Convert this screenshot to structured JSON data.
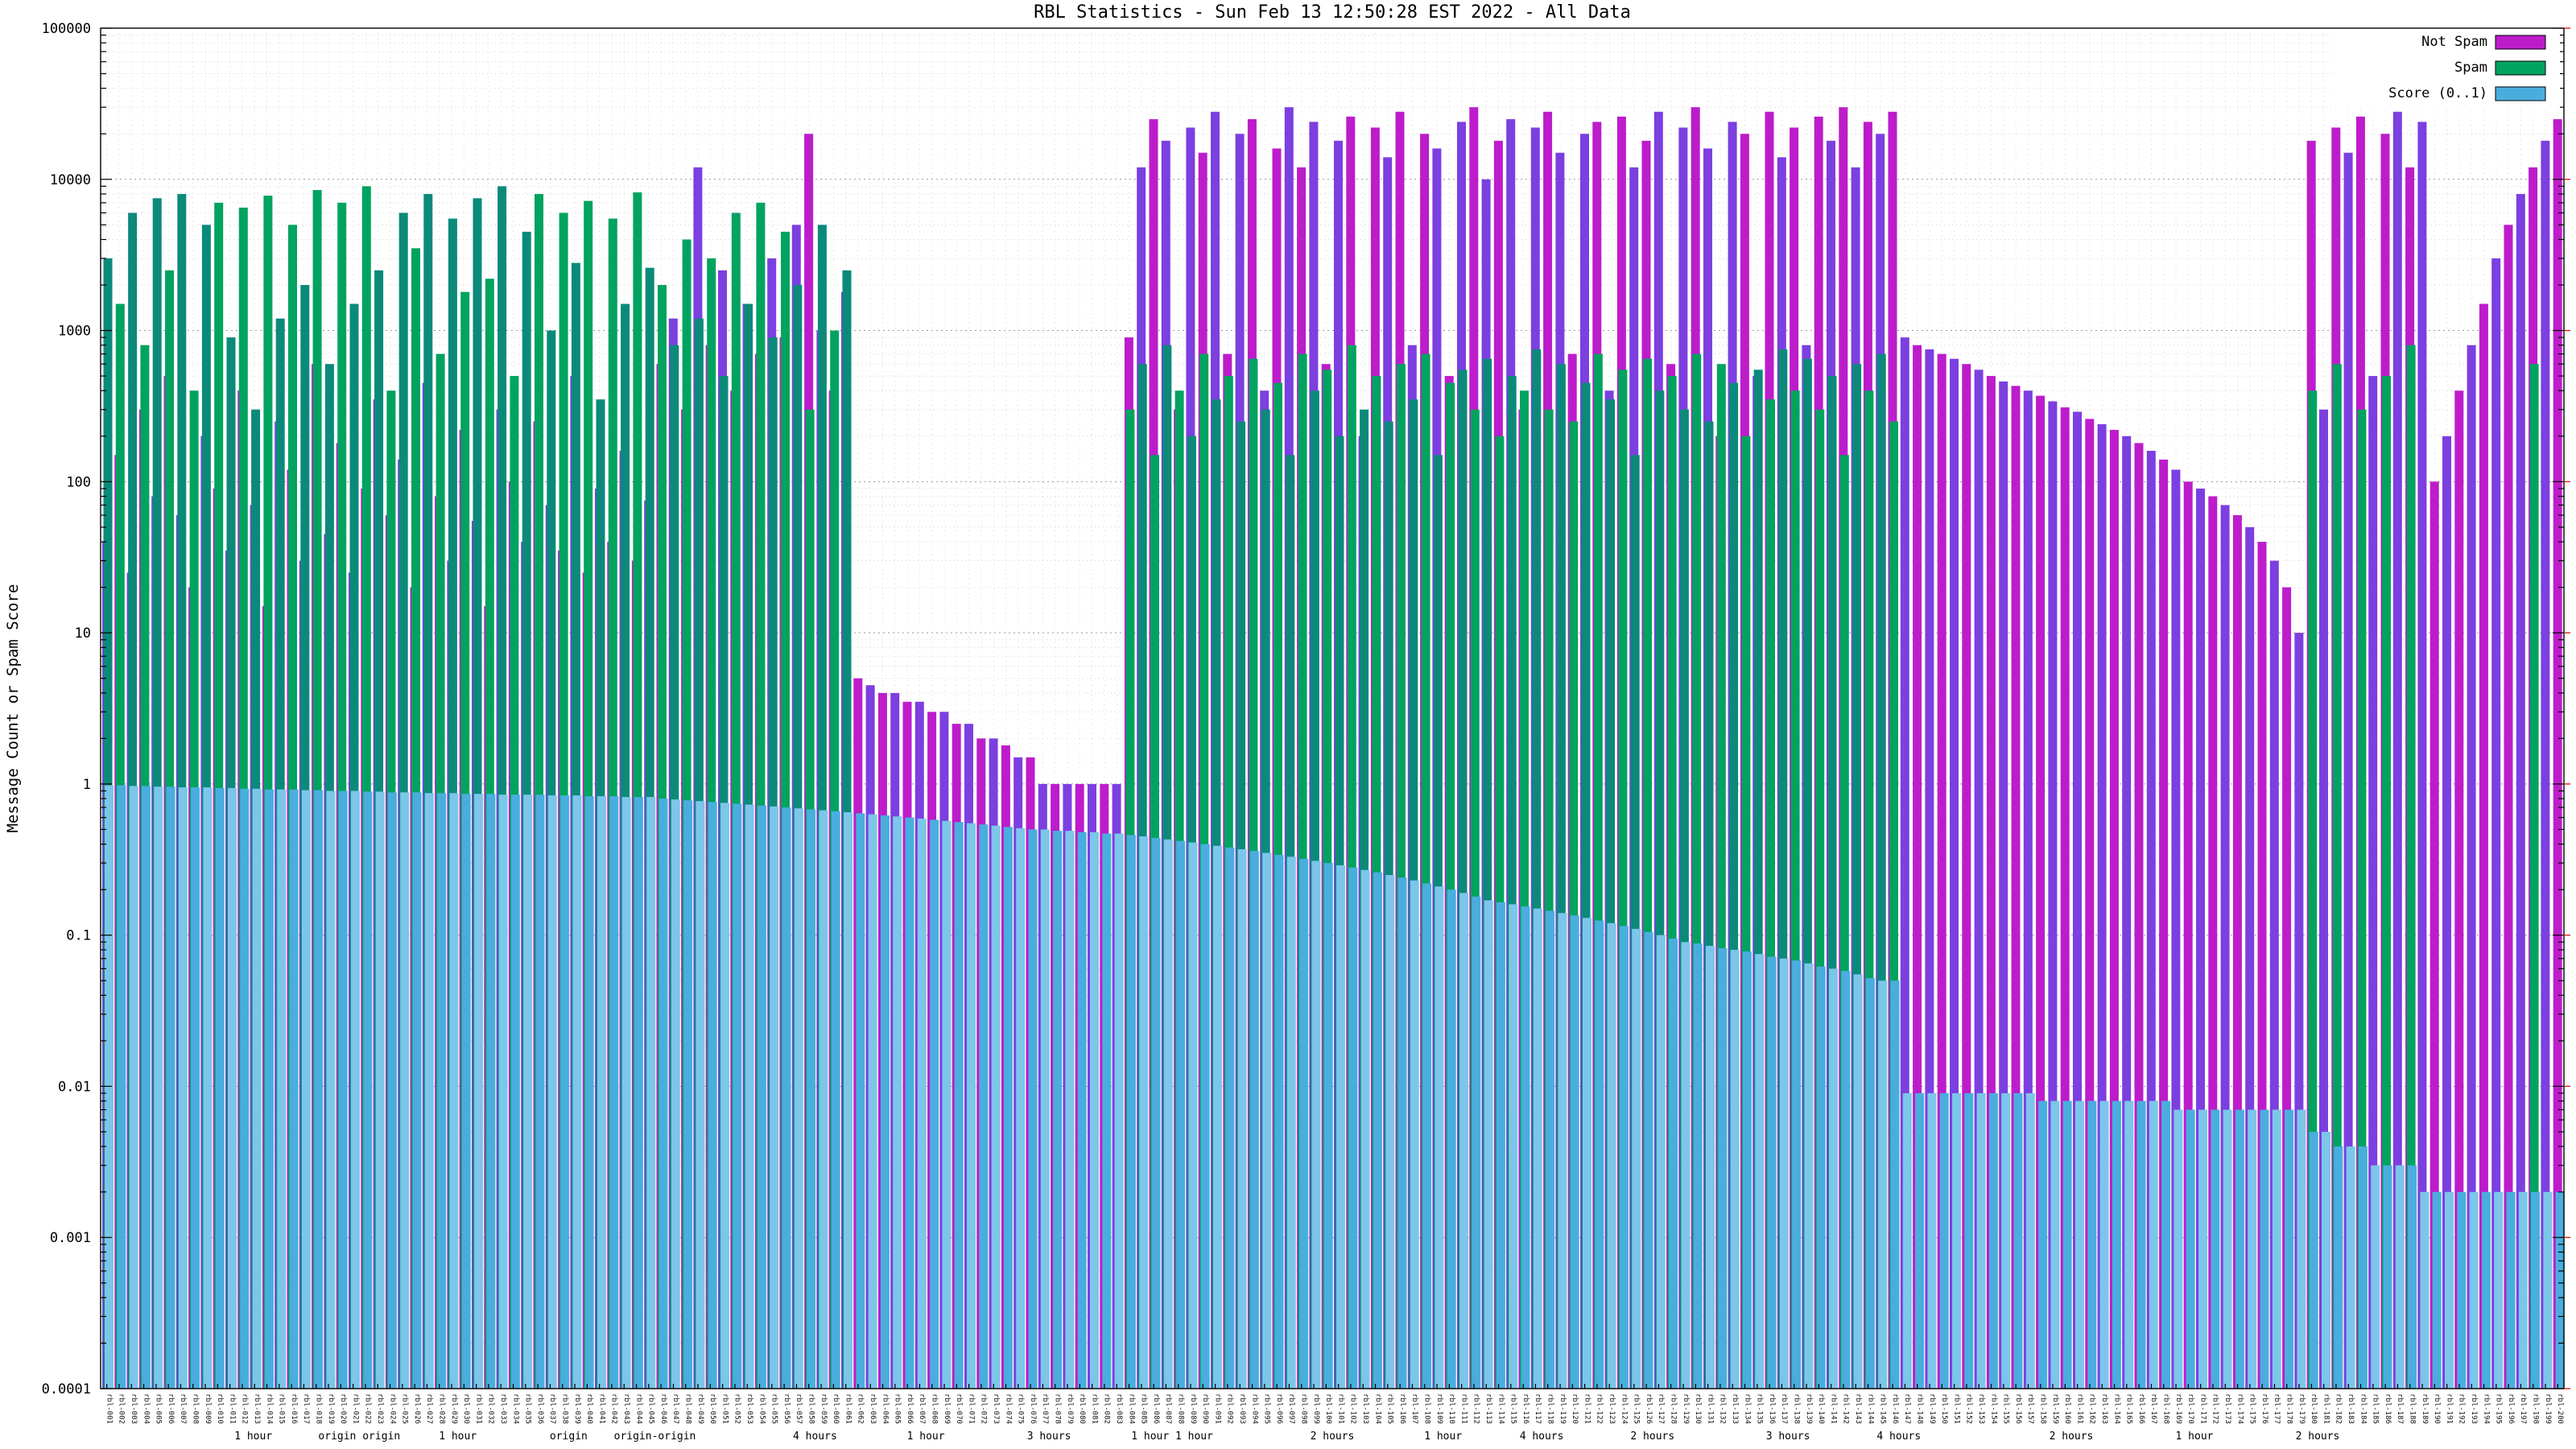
{
  "page": {
    "title": "RBL Statistics - Sun Feb 13 12:50:28 EST 2022 - All Data"
  },
  "chart_data": {
    "type": "bar",
    "title": "RBL Statistics - Sun Feb 13 12:50:28 EST 2022 - All Data",
    "xlabel": "",
    "ylabel": "Message Count or Spam Score",
    "y_scale": "log10",
    "ylim": [
      0.0001,
      100000
    ],
    "y_ticks": [
      "100000",
      "10000",
      "1000",
      "100",
      "10",
      "1",
      "0.1",
      "0.01",
      "0.001",
      "0.0001"
    ],
    "grid": true,
    "legend_position": "top-right",
    "colors": {
      "not_spam": "#bd1ccb",
      "not_spam_alt": "#7c3fe0",
      "spam": "#00a35f",
      "spam_alt": "#0b8a7a",
      "score": "#49aede",
      "score_alt": "#7cc6ea"
    },
    "categories_generated": {
      "prefix": "rbl-",
      "count": 200,
      "note": "x tick labels are illegible in the source image; dense rotated host/rule labels"
    },
    "x_annotations": [
      {
        "label": "1 hour",
        "x": 0.062
      },
      {
        "label": "origin origin",
        "x": 0.105
      },
      {
        "label": "1 hour",
        "x": 0.145
      },
      {
        "label": "origin",
        "x": 0.19
      },
      {
        "label": "origin-origin",
        "x": 0.225
      },
      {
        "label": "4 hours",
        "x": 0.29
      },
      {
        "label": "1 hour",
        "x": 0.335
      },
      {
        "label": "3 hours",
        "x": 0.385
      },
      {
        "label": "1 hour 1 hour",
        "x": 0.435
      },
      {
        "label": "2 hours",
        "x": 0.5
      },
      {
        "label": "1 hour",
        "x": 0.545
      },
      {
        "label": "4 hours",
        "x": 0.585
      },
      {
        "label": "2 hours",
        "x": 0.63
      },
      {
        "label": "3 hours",
        "x": 0.685
      },
      {
        "label": "4 hours",
        "x": 0.73
      },
      {
        "label": "2 hours",
        "x": 0.8
      },
      {
        "label": "1 hour",
        "x": 0.85
      },
      {
        "label": "2 hours",
        "x": 0.9
      }
    ],
    "series": [
      {
        "name": "Not Spam",
        "color_key": "not_spam",
        "alt_color_key": "not_spam_alt",
        "values": [
          40,
          150,
          25,
          300,
          80,
          500,
          60,
          20,
          200,
          90,
          35,
          400,
          70,
          15,
          250,
          120,
          30,
          600,
          45,
          180,
          25,
          90,
          350,
          60,
          140,
          20,
          450,
          80,
          30,
          220,
          55,
          15,
          300,
          100,
          40,
          250,
          70,
          35,
          500,
          25,
          90,
          40,
          160,
          30,
          75,
          600,
          1200,
          300,
          12000,
          800,
          2500,
          400,
          1500,
          700,
          3000,
          900,
          5000,
          20000,
          1000,
          400,
          1800,
          5,
          4.5,
          4,
          4,
          3.5,
          3.5,
          3,
          3,
          2.5,
          2.5,
          2,
          2,
          1.8,
          1.5,
          1.5,
          1,
          1,
          1,
          1,
          1,
          1,
          1,
          900,
          12000,
          25000,
          18000,
          300,
          22000,
          15000,
          28000,
          700,
          20000,
          25000,
          400,
          16000,
          30000,
          12000,
          24000,
          600,
          18000,
          26000,
          200,
          22000,
          14000,
          28000,
          800,
          20000,
          16000,
          500,
          24000,
          30000,
          10000,
          18000,
          25000,
          300,
          22000,
          28000,
          15000,
          700,
          20000,
          24000,
          400,
          26000,
          12000,
          18000,
          28000,
          600,
          22000,
          30000,
          16000,
          200,
          24000,
          20000,
          500,
          28000,
          14000,
          22000,
          800,
          26000,
          18000,
          30000,
          12000,
          24000,
          20000,
          28000,
          900,
          800,
          750,
          700,
          650,
          600,
          550,
          500,
          460,
          430,
          400,
          370,
          340,
          310,
          290,
          260,
          240,
          220,
          200,
          180,
          160,
          140,
          120,
          100,
          90,
          80,
          70,
          60,
          50,
          40,
          30,
          20,
          10,
          18000,
          300,
          22000,
          15000,
          26000,
          500,
          20000,
          28000,
          12000,
          24000,
          100,
          200,
          400,
          800,
          1500,
          3000,
          5000,
          8000,
          12000,
          18000,
          25000
        ]
      },
      {
        "name": "Spam",
        "color_key": "spam",
        "alt_color_key": "spam_alt",
        "values": [
          3000,
          1500,
          6000,
          800,
          7500,
          2500,
          8000,
          400,
          5000,
          7000,
          900,
          6500,
          300,
          7800,
          1200,
          5000,
          2000,
          8500,
          600,
          7000,
          1500,
          9000,
          2500,
          400,
          6000,
          3500,
          8000,
          700,
          5500,
          1800,
          7500,
          2200,
          9000,
          500,
          4500,
          8000,
          1000,
          6000,
          2800,
          7200,
          350,
          5500,
          1500,
          8200,
          2600,
          2000,
          800,
          4000,
          1200,
          3000,
          500,
          6000,
          1500,
          7000,
          900,
          4500,
          2000,
          300,
          5000,
          1000,
          2500,
          0,
          0,
          0,
          0,
          0,
          0,
          0,
          0,
          0,
          0,
          0,
          0,
          0,
          0,
          0,
          0,
          0,
          0,
          0,
          0,
          0,
          0,
          300,
          600,
          150,
          800,
          400,
          200,
          700,
          350,
          500,
          250,
          650,
          300,
          450,
          150,
          700,
          400,
          550,
          200,
          800,
          300,
          500,
          250,
          600,
          350,
          700,
          150,
          450,
          550,
          300,
          650,
          200,
          500,
          400,
          750,
          300,
          600,
          250,
          450,
          700,
          350,
          550,
          150,
          650,
          400,
          500,
          300,
          700,
          250,
          600,
          450,
          200,
          550,
          350,
          750,
          400,
          650,
          300,
          500,
          150,
          600,
          400,
          700,
          250,
          0,
          0,
          0,
          0,
          0,
          0,
          0,
          0,
          0,
          0,
          0,
          0,
          0,
          0,
          0,
          0,
          0,
          0,
          0,
          0,
          0,
          0,
          0,
          0,
          0,
          0,
          0,
          0,
          0,
          0,
          0,
          0,
          0,
          400,
          0,
          600,
          0,
          300,
          0,
          500,
          0,
          800,
          0,
          0,
          0,
          0,
          0,
          0,
          0,
          0,
          0,
          600,
          0,
          0
        ]
      },
      {
        "name": "Score (0..1)",
        "color_key": "score",
        "alt_color_key": "score_alt",
        "values": [
          0.98,
          0.98,
          0.97,
          0.97,
          0.96,
          0.96,
          0.95,
          0.95,
          0.95,
          0.94,
          0.94,
          0.93,
          0.93,
          0.92,
          0.92,
          0.92,
          0.91,
          0.91,
          0.9,
          0.9,
          0.9,
          0.89,
          0.89,
          0.88,
          0.88,
          0.88,
          0.87,
          0.87,
          0.87,
          0.86,
          0.86,
          0.86,
          0.85,
          0.85,
          0.85,
          0.85,
          0.84,
          0.84,
          0.84,
          0.83,
          0.83,
          0.83,
          0.82,
          0.82,
          0.82,
          0.8,
          0.79,
          0.78,
          0.77,
          0.76,
          0.75,
          0.74,
          0.73,
          0.72,
          0.71,
          0.7,
          0.69,
          0.68,
          0.67,
          0.66,
          0.65,
          0.64,
          0.63,
          0.62,
          0.61,
          0.6,
          0.59,
          0.58,
          0.57,
          0.56,
          0.55,
          0.54,
          0.53,
          0.52,
          0.51,
          0.5,
          0.5,
          0.49,
          0.49,
          0.48,
          0.48,
          0.47,
          0.47,
          0.46,
          0.45,
          0.44,
          0.43,
          0.42,
          0.41,
          0.4,
          0.39,
          0.38,
          0.37,
          0.36,
          0.35,
          0.34,
          0.33,
          0.32,
          0.31,
          0.3,
          0.29,
          0.28,
          0.27,
          0.26,
          0.25,
          0.24,
          0.23,
          0.22,
          0.21,
          0.2,
          0.19,
          0.18,
          0.17,
          0.165,
          0.16,
          0.155,
          0.15,
          0.145,
          0.14,
          0.135,
          0.13,
          0.125,
          0.12,
          0.115,
          0.11,
          0.105,
          0.1,
          0.095,
          0.09,
          0.088,
          0.085,
          0.082,
          0.08,
          0.078,
          0.075,
          0.072,
          0.07,
          0.068,
          0.065,
          0.062,
          0.06,
          0.058,
          0.055,
          0.052,
          0.05,
          0.05,
          0.009,
          0.009,
          0.009,
          0.009,
          0.009,
          0.009,
          0.009,
          0.009,
          0.009,
          0.009,
          0.009,
          0.008,
          0.008,
          0.008,
          0.008,
          0.008,
          0.008,
          0.008,
          0.008,
          0.008,
          0.008,
          0.008,
          0.007,
          0.007,
          0.007,
          0.007,
          0.007,
          0.007,
          0.007,
          0.007,
          0.007,
          0.007,
          0.007,
          0.005,
          0.005,
          0.004,
          0.004,
          0.004,
          0.003,
          0.003,
          0.003,
          0.003,
          0.002,
          0.002,
          0.002,
          0.002,
          0.002,
          0.002,
          0.002,
          0.002,
          0.002,
          0.002,
          0.002,
          0.002
        ]
      }
    ]
  },
  "legend": {
    "items": [
      {
        "label": "Not Spam"
      },
      {
        "label": "Spam"
      },
      {
        "label": "Score (0..1)"
      }
    ]
  }
}
